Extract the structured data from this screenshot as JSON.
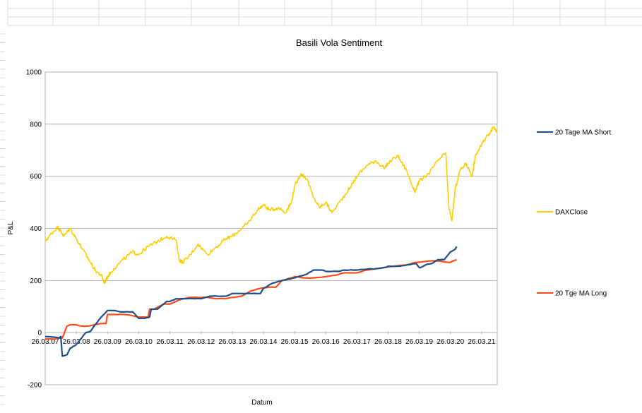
{
  "chart_data": {
    "type": "line",
    "title": "Basili Vola Sentiment",
    "xlabel": "Datum",
    "ylabel": "P&L",
    "ylim": [
      -200,
      1000
    ],
    "yticks": [
      -200,
      0,
      200,
      400,
      600,
      800,
      1000
    ],
    "xticks": [
      "26.03.07",
      "26.03.08",
      "26.03.09",
      "26.03.10",
      "26.03.11",
      "26.03.12",
      "26.03.13",
      "26.03.14",
      "26.03.15",
      "26.03.16",
      "26.03.17",
      "26.03.18",
      "26.03.19",
      "26.03.20",
      "26.03.21"
    ],
    "xlim": [
      2007,
      2021.5
    ],
    "grid": "horizontal",
    "legend_position": "right",
    "series": [
      {
        "name": "20 Tage MA Short",
        "color": "#1f4e8c",
        "x": [
          2007.0,
          2007.45,
          2007.5,
          2007.55,
          2007.7,
          2007.8,
          2007.95,
          2008.0,
          2008.1,
          2008.3,
          2008.45,
          2008.6,
          2008.8,
          2009.0,
          2009.2,
          2009.4,
          2009.6,
          2009.8,
          2010.0,
          2010.2,
          2010.35,
          2010.4,
          2010.6,
          2010.9,
          2011.0,
          2011.2,
          2011.5,
          2011.8,
          2012.0,
          2012.3,
          2012.5,
          2012.8,
          2013.0,
          2013.3,
          2013.6,
          2013.9,
          2014.0,
          2014.3,
          2014.6,
          2014.8,
          2015.0,
          2015.4,
          2015.6,
          2015.9,
          2016.0,
          2016.4,
          2016.6,
          2016.9,
          2017.0,
          2017.4,
          2017.6,
          2017.9,
          2018.0,
          2018.4,
          2018.6,
          2018.9,
          2019.0,
          2019.05,
          2019.2,
          2019.4,
          2019.6,
          2019.8,
          2020.0,
          2020.15,
          2020.2
        ],
        "values": [
          -15,
          -20,
          -15,
          -90,
          -85,
          -60,
          -50,
          -45,
          -30,
          0,
          5,
          30,
          60,
          85,
          85,
          80,
          80,
          80,
          55,
          55,
          60,
          90,
          90,
          120,
          120,
          130,
          130,
          130,
          130,
          140,
          140,
          140,
          150,
          150,
          150,
          150,
          170,
          190,
          200,
          205,
          210,
          225,
          240,
          240,
          235,
          235,
          240,
          240,
          240,
          245,
          245,
          250,
          255,
          255,
          260,
          265,
          250,
          250,
          260,
          265,
          280,
          280,
          310,
          320,
          330
        ]
      },
      {
        "name": "DAXClose",
        "color": "#ffcc00",
        "x": [
          2007.0,
          2007.2,
          2007.4,
          2007.5,
          2007.6,
          2007.8,
          2008.0,
          2008.2,
          2008.4,
          2008.6,
          2008.8,
          2008.9,
          2009.0,
          2009.2,
          2009.5,
          2009.8,
          2010.0,
          2010.3,
          2010.6,
          2010.9,
          2011.2,
          2011.3,
          2011.4,
          2011.6,
          2011.9,
          2012.2,
          2012.5,
          2012.8,
          2013.0,
          2013.3,
          2013.5,
          2013.8,
          2014.0,
          2014.2,
          2014.5,
          2014.7,
          2014.9,
          2015.0,
          2015.2,
          2015.4,
          2015.6,
          2015.8,
          2016.0,
          2016.2,
          2016.5,
          2016.8,
          2017.0,
          2017.3,
          2017.6,
          2017.9,
          2018.0,
          2018.3,
          2018.6,
          2018.85,
          2019.0,
          2019.3,
          2019.6,
          2019.85,
          2019.95,
          2020.05,
          2020.15,
          2020.3,
          2020.5,
          2020.7,
          2020.8,
          2021.0,
          2021.2,
          2021.4,
          2021.5
        ],
        "values": [
          350,
          380,
          405,
          390,
          370,
          400,
          360,
          320,
          280,
          240,
          220,
          190,
          215,
          245,
          280,
          310,
          300,
          330,
          350,
          370,
          355,
          280,
          270,
          290,
          340,
          300,
          330,
          360,
          370,
          400,
          420,
          470,
          490,
          470,
          480,
          460,
          500,
          560,
          610,
          590,
          520,
          480,
          500,
          460,
          510,
          560,
          600,
          640,
          660,
          630,
          650,
          680,
          620,
          540,
          580,
          610,
          660,
          690,
          480,
          430,
          550,
          620,
          650,
          600,
          680,
          720,
          760,
          790,
          770
        ]
      },
      {
        "name": "20 Tge MA Long",
        "color": "#ff4d1a",
        "x": [
          2007.0,
          2007.3,
          2007.55,
          2007.7,
          2007.8,
          2008.0,
          2008.2,
          2008.4,
          2008.6,
          2008.8,
          2008.95,
          2009.0,
          2009.2,
          2009.5,
          2009.8,
          2010.0,
          2010.3,
          2010.35,
          2010.5,
          2010.8,
          2011.0,
          2011.3,
          2011.6,
          2011.9,
          2012.2,
          2012.5,
          2012.8,
          2013.0,
          2013.3,
          2013.6,
          2013.9,
          2014.2,
          2014.4,
          2014.6,
          2014.9,
          2015.0,
          2015.3,
          2015.6,
          2016.0,
          2016.3,
          2016.6,
          2017.0,
          2017.3,
          2017.6,
          2017.9,
          2018.2,
          2018.6,
          2018.9,
          2019.0,
          2019.3,
          2019.6,
          2019.9,
          2020.0,
          2020.2
        ],
        "values": [
          -25,
          -25,
          -20,
          25,
          30,
          30,
          25,
          25,
          30,
          35,
          35,
          70,
          70,
          70,
          65,
          60,
          60,
          90,
          90,
          110,
          110,
          125,
          135,
          135,
          135,
          130,
          130,
          135,
          140,
          160,
          170,
          175,
          175,
          200,
          210,
          215,
          210,
          210,
          215,
          220,
          230,
          230,
          240,
          245,
          250,
          255,
          260,
          270,
          270,
          275,
          275,
          270,
          270,
          280
        ]
      }
    ]
  }
}
